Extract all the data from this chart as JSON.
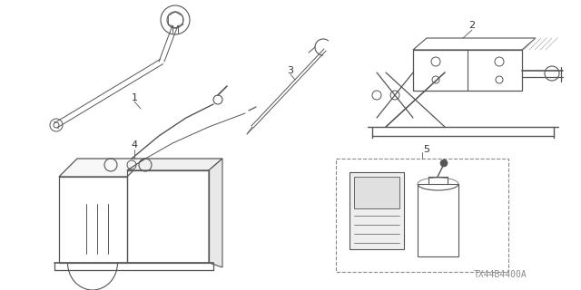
{
  "background_color": "#ffffff",
  "line_color": "#555555",
  "line_color_dark": "#333333",
  "line_width": 0.8,
  "watermark": "TX44B4400A",
  "watermark_color": "#888888",
  "watermark_fontsize": 7
}
